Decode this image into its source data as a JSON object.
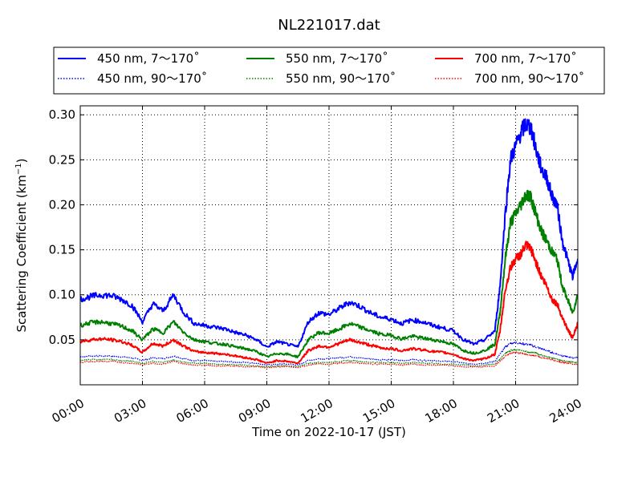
{
  "chart_data": {
    "type": "line",
    "title": "NL221017.dat",
    "xlabel": "Time on 2022-10-17 (JST)",
    "ylabel": "Scattering Coefficient (km",
    "ylabel_sup": "−1",
    "ylabel_close": ")",
    "xlim_hours": [
      0,
      24
    ],
    "ylim": [
      0.0,
      0.31
    ],
    "x_ticks": [
      {
        "hour": 0,
        "label": "00:00"
      },
      {
        "hour": 3,
        "label": "03:00"
      },
      {
        "hour": 6,
        "label": "06:00"
      },
      {
        "hour": 9,
        "label": "09:00"
      },
      {
        "hour": 12,
        "label": "12:00"
      },
      {
        "hour": 15,
        "label": "15:00"
      },
      {
        "hour": 18,
        "label": "18:00"
      },
      {
        "hour": 21,
        "label": "21:00"
      },
      {
        "hour": 24,
        "label": "24:00"
      }
    ],
    "y_ticks": [
      {
        "value": 0.05,
        "label": "0.05"
      },
      {
        "value": 0.1,
        "label": "0.10"
      },
      {
        "value": 0.15,
        "label": "0.15"
      },
      {
        "value": 0.2,
        "label": "0.20"
      },
      {
        "value": 0.25,
        "label": "0.25"
      },
      {
        "value": 0.3,
        "label": "0.30"
      }
    ],
    "grid": true,
    "legend_position": "top",
    "x_hours": [
      0,
      0.5,
      1,
      1.5,
      2,
      2.5,
      3,
      3.5,
      4,
      4.5,
      5,
      5.5,
      6,
      6.5,
      7,
      7.5,
      8,
      8.5,
      9,
      9.5,
      10,
      10.5,
      11,
      11.5,
      12,
      12.5,
      13,
      13.5,
      14,
      14.5,
      15,
      15.5,
      16,
      16.5,
      17,
      17.5,
      18,
      18.5,
      19,
      19.5,
      20,
      20.25,
      20.5,
      20.75,
      21,
      21.25,
      21.5,
      21.75,
      22,
      22.25,
      22.5,
      22.75,
      23,
      23.25,
      23.5,
      23.75,
      24
    ],
    "series": [
      {
        "name": "450 nm, 7～170˚",
        "color": "#0000ff",
        "style": "solid",
        "values": [
          0.095,
          0.098,
          0.1,
          0.099,
          0.095,
          0.088,
          0.07,
          0.09,
          0.082,
          0.1,
          0.08,
          0.068,
          0.066,
          0.064,
          0.062,
          0.058,
          0.055,
          0.05,
          0.042,
          0.048,
          0.045,
          0.042,
          0.07,
          0.08,
          0.078,
          0.085,
          0.092,
          0.087,
          0.08,
          0.075,
          0.073,
          0.068,
          0.072,
          0.07,
          0.066,
          0.063,
          0.06,
          0.05,
          0.045,
          0.05,
          0.06,
          0.11,
          0.19,
          0.25,
          0.265,
          0.28,
          0.29,
          0.285,
          0.26,
          0.24,
          0.23,
          0.21,
          0.2,
          0.16,
          0.14,
          0.12,
          0.14
        ]
      },
      {
        "name": "550 nm, 7～170˚",
        "color": "#008000",
        "style": "solid",
        "values": [
          0.066,
          0.069,
          0.07,
          0.068,
          0.065,
          0.06,
          0.05,
          0.062,
          0.058,
          0.07,
          0.058,
          0.05,
          0.048,
          0.046,
          0.045,
          0.042,
          0.04,
          0.037,
          0.031,
          0.035,
          0.034,
          0.031,
          0.05,
          0.058,
          0.057,
          0.062,
          0.068,
          0.064,
          0.06,
          0.056,
          0.055,
          0.051,
          0.054,
          0.052,
          0.05,
          0.048,
          0.045,
          0.038,
          0.035,
          0.038,
          0.045,
          0.08,
          0.14,
          0.18,
          0.19,
          0.2,
          0.212,
          0.208,
          0.188,
          0.17,
          0.16,
          0.148,
          0.14,
          0.11,
          0.095,
          0.08,
          0.1
        ]
      },
      {
        "name": "700 nm, 7～170˚",
        "color": "#ff0000",
        "style": "solid",
        "values": [
          0.048,
          0.05,
          0.051,
          0.05,
          0.048,
          0.044,
          0.036,
          0.046,
          0.043,
          0.05,
          0.043,
          0.037,
          0.036,
          0.035,
          0.034,
          0.032,
          0.03,
          0.028,
          0.024,
          0.027,
          0.026,
          0.024,
          0.038,
          0.043,
          0.042,
          0.046,
          0.05,
          0.047,
          0.044,
          0.041,
          0.04,
          0.038,
          0.04,
          0.039,
          0.037,
          0.036,
          0.034,
          0.029,
          0.027,
          0.029,
          0.034,
          0.06,
          0.105,
          0.13,
          0.14,
          0.145,
          0.155,
          0.15,
          0.135,
          0.12,
          0.11,
          0.095,
          0.09,
          0.075,
          0.062,
          0.052,
          0.068
        ]
      },
      {
        "name": "450 nm, 90～170˚",
        "color": "#0000ff",
        "style": "dotted",
        "values": [
          0.031,
          0.032,
          0.032,
          0.032,
          0.031,
          0.03,
          0.027,
          0.03,
          0.029,
          0.032,
          0.029,
          0.027,
          0.027,
          0.026,
          0.026,
          0.025,
          0.025,
          0.024,
          0.022,
          0.023,
          0.023,
          0.022,
          0.027,
          0.029,
          0.029,
          0.03,
          0.031,
          0.03,
          0.029,
          0.028,
          0.028,
          0.027,
          0.028,
          0.027,
          0.027,
          0.026,
          0.026,
          0.024,
          0.023,
          0.024,
          0.026,
          0.034,
          0.042,
          0.046,
          0.047,
          0.046,
          0.045,
          0.044,
          0.042,
          0.04,
          0.038,
          0.036,
          0.034,
          0.032,
          0.031,
          0.03,
          0.03
        ]
      },
      {
        "name": "550 nm, 90～170˚",
        "color": "#008000",
        "style": "dotted",
        "values": [
          0.027,
          0.028,
          0.028,
          0.028,
          0.027,
          0.026,
          0.024,
          0.026,
          0.025,
          0.028,
          0.025,
          0.024,
          0.024,
          0.023,
          0.023,
          0.022,
          0.022,
          0.021,
          0.02,
          0.021,
          0.021,
          0.02,
          0.024,
          0.025,
          0.025,
          0.026,
          0.027,
          0.026,
          0.025,
          0.025,
          0.025,
          0.024,
          0.025,
          0.024,
          0.024,
          0.023,
          0.023,
          0.022,
          0.021,
          0.022,
          0.023,
          0.029,
          0.035,
          0.038,
          0.039,
          0.038,
          0.037,
          0.036,
          0.035,
          0.033,
          0.031,
          0.03,
          0.028,
          0.027,
          0.026,
          0.025,
          0.025
        ]
      },
      {
        "name": "700 nm, 90～170˚",
        "color": "#ff0000",
        "style": "dotted",
        "values": [
          0.025,
          0.026,
          0.026,
          0.026,
          0.025,
          0.024,
          0.022,
          0.024,
          0.023,
          0.026,
          0.023,
          0.022,
          0.022,
          0.021,
          0.021,
          0.021,
          0.02,
          0.02,
          0.019,
          0.02,
          0.02,
          0.019,
          0.022,
          0.023,
          0.023,
          0.024,
          0.025,
          0.024,
          0.023,
          0.023,
          0.023,
          0.022,
          0.023,
          0.022,
          0.022,
          0.022,
          0.021,
          0.02,
          0.02,
          0.02,
          0.021,
          0.026,
          0.032,
          0.035,
          0.036,
          0.035,
          0.034,
          0.033,
          0.032,
          0.03,
          0.029,
          0.028,
          0.026,
          0.025,
          0.024,
          0.023,
          0.023
        ]
      }
    ],
    "legend_order": [
      0,
      1,
      2,
      3,
      4,
      5
    ]
  }
}
